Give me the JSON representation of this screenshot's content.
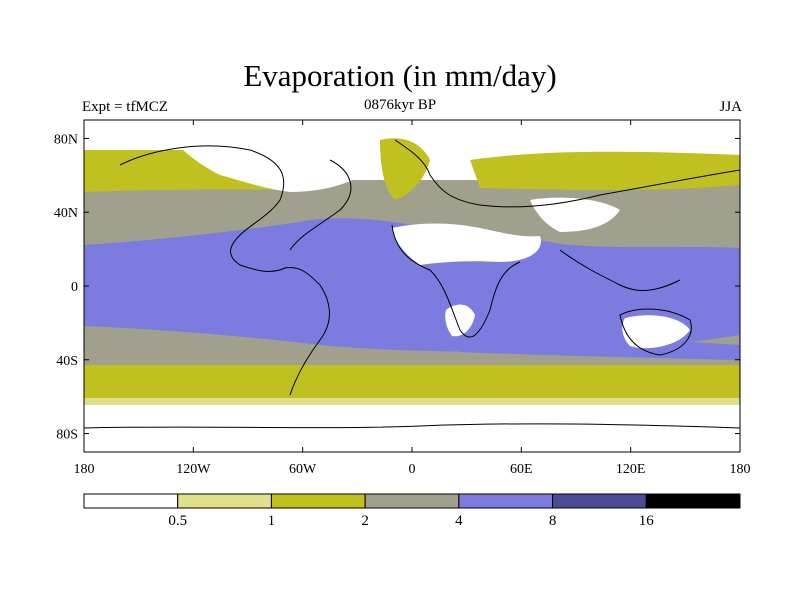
{
  "title": "Evaporation (in mm/day)",
  "subtitle_left": "Expt = tfMCZ",
  "subtitle_center": "0876kyr BP",
  "subtitle_right": "JJA",
  "lat_labels": [
    "80N",
    "40N",
    "0",
    "40S",
    "80S"
  ],
  "lat_values": [
    80,
    40,
    0,
    -40,
    -80
  ],
  "lon_labels": [
    "180",
    "120W",
    "60W",
    "0",
    "60E",
    "120E",
    "180"
  ],
  "lon_values": [
    -180,
    -120,
    -60,
    0,
    60,
    120,
    180
  ],
  "colorbar": {
    "colors": [
      "#ffffff",
      "#e0e08a",
      "#c0c020",
      "#a0a08c",
      "#7b7be0",
      "#4c4c94",
      "#000000"
    ],
    "labels": [
      "0.5",
      "1",
      "2",
      "4",
      "8",
      "16"
    ]
  }
}
